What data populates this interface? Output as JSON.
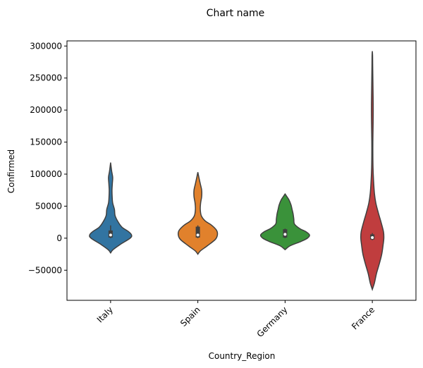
{
  "chart_data": {
    "type": "violin",
    "title": "Chart name",
    "xlabel": "Country_Region",
    "ylabel": "Confirmed",
    "categories": [
      "Italy",
      "Spain",
      "Germany",
      "France"
    ],
    "ylim": [
      -97000,
      308000
    ],
    "yticks": [
      -50000,
      0,
      50000,
      100000,
      150000,
      200000,
      250000,
      300000
    ],
    "ytick_labels": [
      "−50000",
      "0",
      "50000",
      "100000",
      "150000",
      "200000",
      "250000",
      "300000"
    ],
    "grid": false,
    "legend": "none",
    "series": [
      {
        "category": "Italy",
        "color": "#3274a1",
        "range": [
          -23000,
          118000
        ],
        "median": 5000,
        "q1": 1000,
        "q3": 12000,
        "whisker": [
          0,
          20000
        ],
        "density": [
          [
            -23000,
            0
          ],
          [
            -18000,
            0.07
          ],
          [
            -10000,
            0.27
          ],
          [
            0,
            0.56
          ],
          [
            5000,
            0.6
          ],
          [
            10000,
            0.52
          ],
          [
            17000,
            0.33
          ],
          [
            25000,
            0.22
          ],
          [
            35000,
            0.13
          ],
          [
            45000,
            0.11
          ],
          [
            55000,
            0.06
          ],
          [
            65000,
            0.045
          ],
          [
            75000,
            0.04
          ],
          [
            85000,
            0.05
          ],
          [
            95000,
            0.06
          ],
          [
            105000,
            0.03
          ],
          [
            118000,
            0
          ]
        ]
      },
      {
        "category": "Spain",
        "color": "#e1812c",
        "range": [
          -25000,
          103000
        ],
        "median": 5000,
        "q1": 1000,
        "q3": 18000,
        "whisker": [
          0,
          20000
        ],
        "density": [
          [
            -25000,
            0
          ],
          [
            -20000,
            0.07
          ],
          [
            -12000,
            0.27
          ],
          [
            -2000,
            0.5
          ],
          [
            5000,
            0.56
          ],
          [
            12000,
            0.54
          ],
          [
            20000,
            0.4
          ],
          [
            27000,
            0.21
          ],
          [
            35000,
            0.1
          ],
          [
            45000,
            0.07
          ],
          [
            55000,
            0.08
          ],
          [
            65000,
            0.11
          ],
          [
            75000,
            0.11
          ],
          [
            85000,
            0.07
          ],
          [
            95000,
            0.03
          ],
          [
            103000,
            0
          ]
        ]
      },
      {
        "category": "Germany",
        "color": "#3a923a",
        "range": [
          -18000,
          69000
        ],
        "median": 6000,
        "q1": 1000,
        "q3": 14000,
        "whisker": [
          0,
          15000
        ],
        "density": [
          [
            -18000,
            0
          ],
          [
            -12000,
            0.14
          ],
          [
            -5000,
            0.46
          ],
          [
            0,
            0.64
          ],
          [
            5000,
            0.7
          ],
          [
            10000,
            0.6
          ],
          [
            15000,
            0.42
          ],
          [
            22000,
            0.27
          ],
          [
            30000,
            0.25
          ],
          [
            38000,
            0.23
          ],
          [
            45000,
            0.2
          ],
          [
            52000,
            0.17
          ],
          [
            60000,
            0.11
          ],
          [
            65000,
            0.05
          ],
          [
            69000,
            0
          ]
        ]
      },
      {
        "category": "France",
        "color": "#c03d3e",
        "range": [
          -80000,
          292000
        ],
        "median": 1000,
        "q1": -2000,
        "q3": 6000,
        "whisker": [
          -3000,
          8000
        ],
        "density": [
          [
            -80000,
            0
          ],
          [
            -70000,
            0.06
          ],
          [
            -55000,
            0.12
          ],
          [
            -40000,
            0.2
          ],
          [
            -25000,
            0.27
          ],
          [
            -10000,
            0.31
          ],
          [
            0,
            0.33
          ],
          [
            10000,
            0.32
          ],
          [
            25000,
            0.25
          ],
          [
            40000,
            0.17
          ],
          [
            55000,
            0.1
          ],
          [
            70000,
            0.06
          ],
          [
            90000,
            0.035
          ],
          [
            110000,
            0.02
          ],
          [
            130000,
            0.015
          ],
          [
            150000,
            0.015
          ],
          [
            170000,
            0.02
          ],
          [
            190000,
            0.025
          ],
          [
            210000,
            0.025
          ],
          [
            230000,
            0.02
          ],
          [
            250000,
            0.015
          ],
          [
            270000,
            0.01
          ],
          [
            285000,
            0.007
          ],
          [
            292000,
            0
          ]
        ]
      }
    ]
  }
}
